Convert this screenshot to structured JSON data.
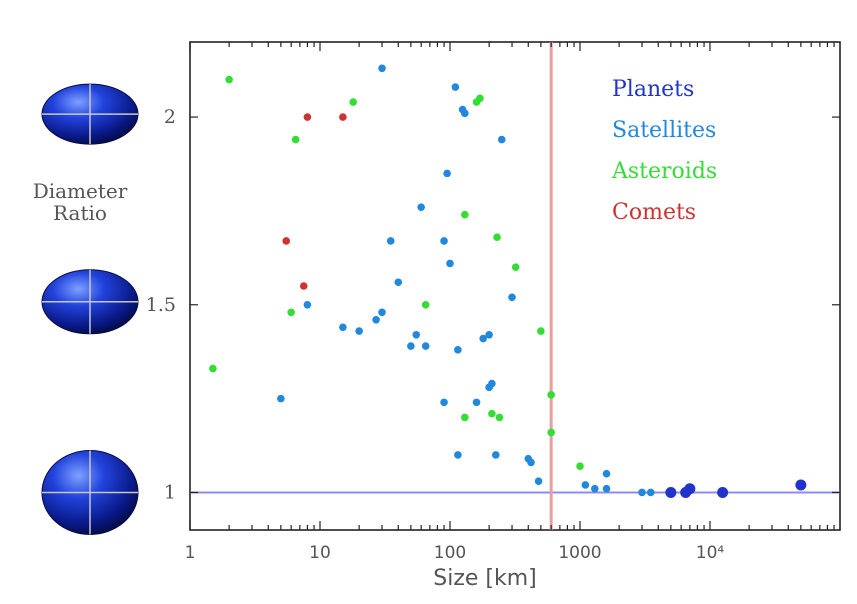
{
  "corner": {
    "left": "",
    "right": ""
  },
  "chart_data": {
    "type": "scatter",
    "title": "",
    "xlabel": "Size [km]",
    "ylabel": [
      "Diameter",
      "Ratio"
    ],
    "x_scale": "log",
    "xlim": [
      1,
      100000
    ],
    "ylim": [
      0.9,
      2.2
    ],
    "xtick_labels": [
      "1",
      "10",
      "100",
      "1000",
      "10⁴"
    ],
    "xtick_values": [
      1,
      10,
      100,
      1000,
      10000
    ],
    "ytick_labels": [
      "1",
      "1.5",
      "2"
    ],
    "ytick_values": [
      1,
      1.5,
      2
    ],
    "reference_lines": [
      {
        "orientation": "horizontal",
        "value": 1,
        "color": "#8c8cf0"
      },
      {
        "orientation": "vertical",
        "value": 600,
        "color": "#e6a0a0"
      }
    ],
    "legend_position": "top-right",
    "series": [
      {
        "name": "Planets",
        "color": "#2233cc",
        "points": [
          [
            5000,
            1.0
          ],
          [
            6500,
            1.0
          ],
          [
            7000,
            1.01
          ],
          [
            12500,
            1.0
          ],
          [
            50000,
            1.02
          ]
        ]
      },
      {
        "name": "Satellites",
        "color": "#2288dd",
        "points": [
          [
            30,
            2.13
          ],
          [
            110,
            2.08
          ],
          [
            125,
            2.02
          ],
          [
            130,
            2.01
          ],
          [
            250,
            1.94
          ],
          [
            95,
            1.85
          ],
          [
            60,
            1.76
          ],
          [
            35,
            1.67
          ],
          [
            90,
            1.67
          ],
          [
            100,
            1.61
          ],
          [
            40,
            1.56
          ],
          [
            300,
            1.52
          ],
          [
            8,
            1.5
          ],
          [
            5,
            1.25
          ],
          [
            15,
            1.44
          ],
          [
            20,
            1.43
          ],
          [
            27,
            1.46
          ],
          [
            30,
            1.48
          ],
          [
            55,
            1.42
          ],
          [
            50,
            1.39
          ],
          [
            65,
            1.39
          ],
          [
            115,
            1.38
          ],
          [
            180,
            1.41
          ],
          [
            200,
            1.42
          ],
          [
            200,
            1.28
          ],
          [
            210,
            1.29
          ],
          [
            90,
            1.24
          ],
          [
            160,
            1.24
          ],
          [
            115,
            1.1
          ],
          [
            225,
            1.1
          ],
          [
            400,
            1.09
          ],
          [
            420,
            1.08
          ],
          [
            480,
            1.03
          ],
          [
            1100,
            1.02
          ],
          [
            1300,
            1.01
          ],
          [
            1600,
            1.05
          ],
          [
            1600,
            1.01
          ],
          [
            3000,
            1.0
          ],
          [
            3500,
            1.0
          ]
        ]
      },
      {
        "name": "Asteroids",
        "color": "#33dd33",
        "points": [
          [
            2,
            2.1
          ],
          [
            18,
            2.04
          ],
          [
            160,
            2.04
          ],
          [
            170,
            2.05
          ],
          [
            6.5,
            1.94
          ],
          [
            130,
            1.74
          ],
          [
            230,
            1.68
          ],
          [
            320,
            1.6
          ],
          [
            6,
            1.48
          ],
          [
            65,
            1.5
          ],
          [
            500,
            1.43
          ],
          [
            1.5,
            1.33
          ],
          [
            600,
            1.26
          ],
          [
            130,
            1.2
          ],
          [
            210,
            1.21
          ],
          [
            240,
            1.2
          ],
          [
            600,
            1.16
          ],
          [
            1000,
            1.07
          ]
        ]
      },
      {
        "name": "Comets",
        "color": "#cc3333",
        "points": [
          [
            8,
            2.0
          ],
          [
            15,
            2.0
          ],
          [
            5.5,
            1.67
          ],
          [
            7.5,
            1.55
          ]
        ]
      }
    ]
  }
}
